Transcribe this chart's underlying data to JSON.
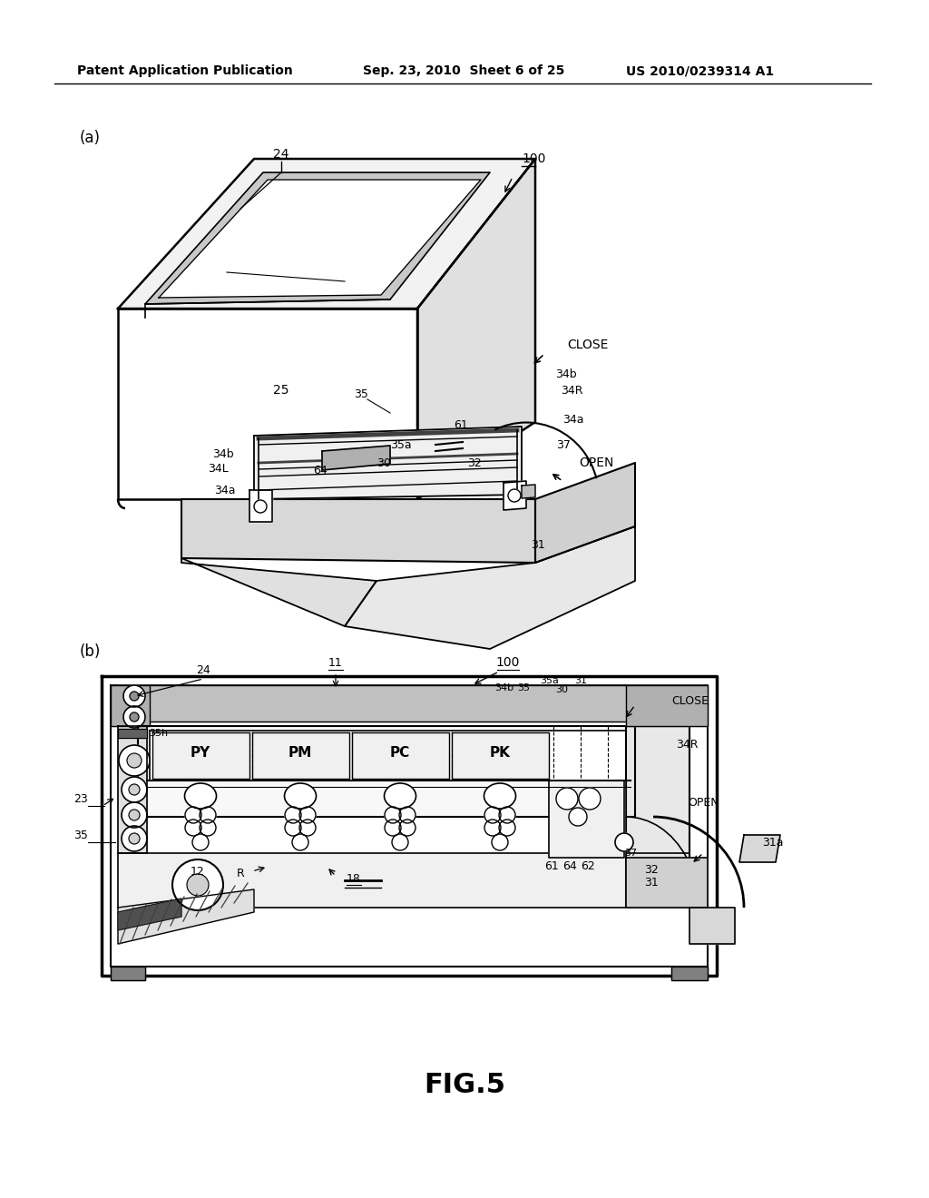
{
  "background_color": "#ffffff",
  "header_left": "Patent Application Publication",
  "header_center": "Sep. 23, 2010  Sheet 6 of 25",
  "header_right": "US 2010/0239314 A1",
  "footer_label": "FIG.5",
  "fig_label_a": "(a)",
  "fig_label_b": "(b)"
}
